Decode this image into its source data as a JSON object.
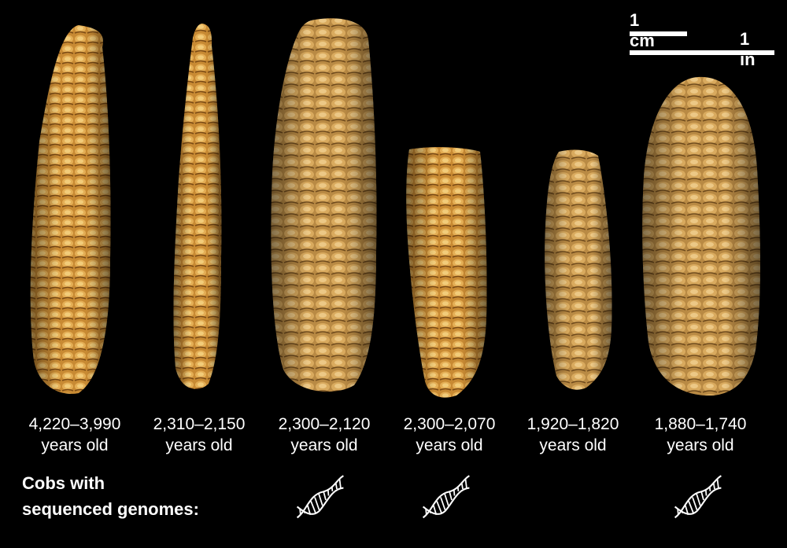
{
  "scale": {
    "cm_label": "1 cm",
    "in_label": "1 in"
  },
  "cobs": [
    {
      "date": "4,220–3,990",
      "age_suffix": "years old",
      "sequenced": false
    },
    {
      "date": "2,310–2,150",
      "age_suffix": "years old",
      "sequenced": false
    },
    {
      "date": "2,300–2,120",
      "age_suffix": "years old",
      "sequenced": true
    },
    {
      "date": "2,300–2,070",
      "age_suffix": "years old",
      "sequenced": true
    },
    {
      "date": "1,920–1,820",
      "age_suffix": "years old",
      "sequenced": false
    },
    {
      "date": "1,880–1,740",
      "age_suffix": "years old",
      "sequenced": true
    }
  ],
  "legend": {
    "line1": "Cobs with",
    "line2": "sequenced genomes:"
  },
  "colors": {
    "background": "#000000",
    "text": "#ffffff",
    "cob_light": "#e0a84a",
    "cob_dark": "#8a5a1c"
  },
  "icons": {
    "genome": "dna-double-helix-icon"
  }
}
